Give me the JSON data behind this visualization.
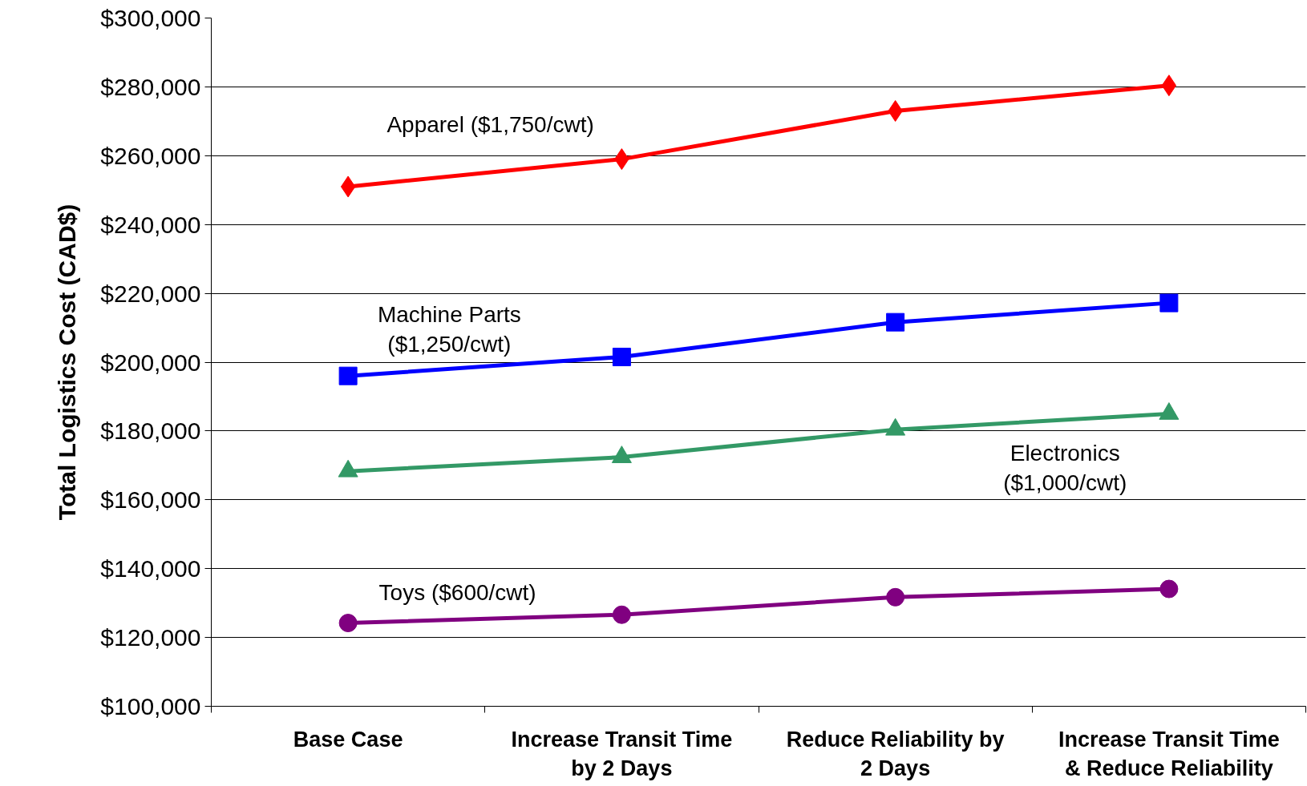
{
  "chart_data": {
    "type": "line",
    "ylabel": "Total Logistics Cost (CAD$)",
    "categories": [
      "Base Case",
      "Increase Transit Time\nby 2 Days",
      "Reduce Reliability by\n2 Days",
      "Increase Transit Time\n& Reduce Reliability"
    ],
    "ylim": [
      100000,
      300000
    ],
    "yticks": [
      {
        "value": 100000,
        "label": "$100,000"
      },
      {
        "value": 120000,
        "label": "$120,000"
      },
      {
        "value": 140000,
        "label": "$140,000"
      },
      {
        "value": 160000,
        "label": "$160,000"
      },
      {
        "value": 180000,
        "label": "$180,000"
      },
      {
        "value": 200000,
        "label": "$200,000"
      },
      {
        "value": 220000,
        "label": "$220,000"
      },
      {
        "value": 240000,
        "label": "$240,000"
      },
      {
        "value": 260000,
        "label": "$260,000"
      },
      {
        "value": 280000,
        "label": "$280,000"
      },
      {
        "value": 300000,
        "label": "$300,000"
      }
    ],
    "grid": "y",
    "line_style": "solid",
    "series": [
      {
        "name": "Apparel ($1,750/cwt)",
        "color": "#ff0000",
        "marker": "diamond",
        "values": [
          251000,
          259000,
          273000,
          280400
        ]
      },
      {
        "name": "Machine Parts\n($1,250/cwt)",
        "color": "#0000ff",
        "marker": "square",
        "values": [
          196000,
          201500,
          211600,
          217200
        ]
      },
      {
        "name": "Electronics\n($1,000/cwt)",
        "color": "#339966",
        "marker": "triangle",
        "values": [
          168300,
          172400,
          180400,
          185000
        ]
      },
      {
        "name": "Toys ($600/cwt)",
        "color": "#800080",
        "marker": "circle",
        "values": [
          124200,
          126600,
          131700,
          134100
        ]
      }
    ]
  }
}
